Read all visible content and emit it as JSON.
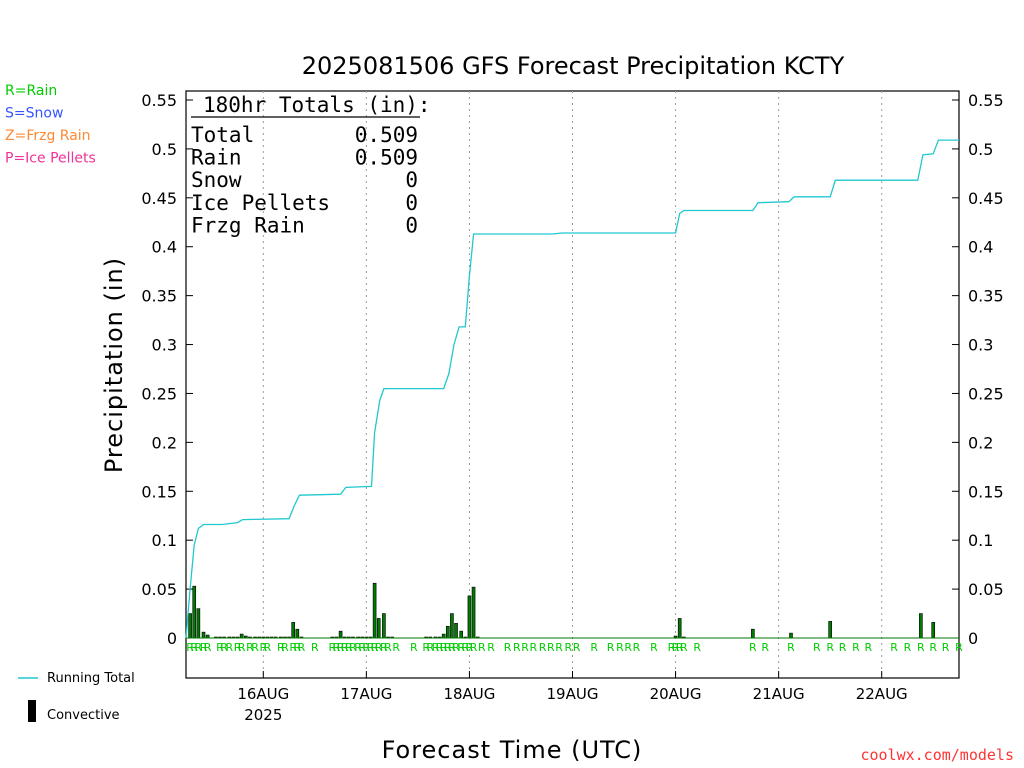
{
  "chart_data": {
    "type": "bar+line",
    "title": "2025081506 GFS Forecast Precipitation KCTY",
    "ylabel": "Precipitation (in)",
    "xlabel": "Forecast Time (UTC)",
    "ylim": [
      0,
      0.56
    ],
    "yticks": [
      "0",
      "0.05",
      "0.1",
      "0.15",
      "0.2",
      "0.25",
      "0.3",
      "0.35",
      "0.4",
      "0.45",
      "0.5",
      "0.55"
    ],
    "x_start_day": 15.25,
    "x_end_day": 22.75,
    "xticks": [
      {
        "label": "16AUG",
        "sub": "2025",
        "day": 16
      },
      {
        "label": "17AUG",
        "sub": "",
        "day": 17
      },
      {
        "label": "18AUG",
        "sub": "",
        "day": 18
      },
      {
        "label": "19AUG",
        "sub": "",
        "day": 19
      },
      {
        "label": "20AUG",
        "sub": "",
        "day": 20
      },
      {
        "label": "21AUG",
        "sub": "",
        "day": 21
      },
      {
        "label": "22AUG",
        "sub": "",
        "day": 22
      }
    ],
    "running_total": [
      [
        15.25,
        0.0
      ],
      [
        15.29,
        0.05
      ],
      [
        15.33,
        0.095
      ],
      [
        15.37,
        0.112
      ],
      [
        15.42,
        0.116
      ],
      [
        15.5,
        0.116
      ],
      [
        15.6,
        0.116
      ],
      [
        15.75,
        0.118
      ],
      [
        15.8,
        0.121
      ],
      [
        16.25,
        0.122
      ],
      [
        16.3,
        0.135
      ],
      [
        16.35,
        0.146
      ],
      [
        16.75,
        0.147
      ],
      [
        16.8,
        0.154
      ],
      [
        17.05,
        0.155
      ],
      [
        17.08,
        0.21
      ],
      [
        17.13,
        0.243
      ],
      [
        17.17,
        0.255
      ],
      [
        17.75,
        0.255
      ],
      [
        17.8,
        0.27
      ],
      [
        17.85,
        0.3
      ],
      [
        17.9,
        0.318
      ],
      [
        17.96,
        0.318
      ],
      [
        18.0,
        0.37
      ],
      [
        18.04,
        0.413
      ],
      [
        18.8,
        0.413
      ],
      [
        18.9,
        0.414
      ],
      [
        20.0,
        0.414
      ],
      [
        20.04,
        0.434
      ],
      [
        20.08,
        0.437
      ],
      [
        20.75,
        0.437
      ],
      [
        20.8,
        0.445
      ],
      [
        21.1,
        0.446
      ],
      [
        21.15,
        0.451
      ],
      [
        21.5,
        0.451
      ],
      [
        21.55,
        0.468
      ],
      [
        22.35,
        0.468
      ],
      [
        22.4,
        0.494
      ],
      [
        22.5,
        0.495
      ],
      [
        22.55,
        0.509
      ],
      [
        22.75,
        0.509
      ]
    ],
    "bars": [
      [
        15.29,
        0.025
      ],
      [
        15.33,
        0.053
      ],
      [
        15.37,
        0.03
      ],
      [
        15.42,
        0.006
      ],
      [
        15.46,
        0.003
      ],
      [
        15.54,
        0.001
      ],
      [
        15.58,
        0.001
      ],
      [
        15.62,
        0.001
      ],
      [
        15.67,
        0.001
      ],
      [
        15.71,
        0.001
      ],
      [
        15.75,
        0.001
      ],
      [
        15.79,
        0.004
      ],
      [
        15.83,
        0.002
      ],
      [
        15.87,
        0.001
      ],
      [
        15.92,
        0.001
      ],
      [
        15.96,
        0.001
      ],
      [
        16.0,
        0.001
      ],
      [
        16.04,
        0.001
      ],
      [
        16.08,
        0.001
      ],
      [
        16.12,
        0.001
      ],
      [
        16.17,
        0.001
      ],
      [
        16.21,
        0.001
      ],
      [
        16.25,
        0.001
      ],
      [
        16.29,
        0.016
      ],
      [
        16.33,
        0.009
      ],
      [
        16.37,
        0.001
      ],
      [
        16.67,
        0.001
      ],
      [
        16.71,
        0.001
      ],
      [
        16.75,
        0.007
      ],
      [
        16.79,
        0.001
      ],
      [
        16.83,
        0.001
      ],
      [
        16.87,
        0.001
      ],
      [
        16.92,
        0.001
      ],
      [
        16.96,
        0.001
      ],
      [
        17.0,
        0.001
      ],
      [
        17.04,
        0.001
      ],
      [
        17.08,
        0.056
      ],
      [
        17.12,
        0.02
      ],
      [
        17.17,
        0.025
      ],
      [
        17.21,
        0.001
      ],
      [
        17.25,
        0.001
      ],
      [
        17.58,
        0.001
      ],
      [
        17.62,
        0.001
      ],
      [
        17.67,
        0.001
      ],
      [
        17.71,
        0.001
      ],
      [
        17.75,
        0.004
      ],
      [
        17.79,
        0.012
      ],
      [
        17.83,
        0.025
      ],
      [
        17.87,
        0.015
      ],
      [
        17.92,
        0.007
      ],
      [
        17.96,
        0.001
      ],
      [
        18.0,
        0.043
      ],
      [
        18.04,
        0.052
      ],
      [
        18.08,
        0.001
      ],
      [
        20.0,
        0.002
      ],
      [
        20.04,
        0.02
      ],
      [
        20.08,
        0.001
      ],
      [
        20.75,
        0.009
      ],
      [
        21.12,
        0.005
      ],
      [
        21.5,
        0.017
      ],
      [
        22.38,
        0.025
      ],
      [
        22.5,
        0.016
      ]
    ],
    "ptype_marks": [
      [
        15.29,
        "R"
      ],
      [
        15.33,
        "R"
      ],
      [
        15.37,
        "R"
      ],
      [
        15.42,
        "R"
      ],
      [
        15.46,
        "R"
      ],
      [
        15.58,
        "R"
      ],
      [
        15.62,
        "R"
      ],
      [
        15.67,
        "R"
      ],
      [
        15.75,
        "R"
      ],
      [
        15.79,
        "R"
      ],
      [
        15.87,
        "R"
      ],
      [
        15.92,
        "R"
      ],
      [
        16.0,
        "R"
      ],
      [
        16.04,
        "R"
      ],
      [
        16.17,
        "R"
      ],
      [
        16.21,
        "R"
      ],
      [
        16.29,
        "R"
      ],
      [
        16.33,
        "R"
      ],
      [
        16.37,
        "R"
      ],
      [
        16.5,
        "R"
      ],
      [
        16.67,
        "R"
      ],
      [
        16.71,
        "R"
      ],
      [
        16.75,
        "R"
      ],
      [
        16.79,
        "R"
      ],
      [
        16.83,
        "R"
      ],
      [
        16.87,
        "R"
      ],
      [
        16.92,
        "R"
      ],
      [
        16.96,
        "R"
      ],
      [
        17.0,
        "R"
      ],
      [
        17.04,
        "R"
      ],
      [
        17.08,
        "R"
      ],
      [
        17.12,
        "R"
      ],
      [
        17.17,
        "R"
      ],
      [
        17.21,
        "R"
      ],
      [
        17.29,
        "R"
      ],
      [
        17.46,
        "R"
      ],
      [
        17.58,
        "R"
      ],
      [
        17.62,
        "R"
      ],
      [
        17.67,
        "R"
      ],
      [
        17.71,
        "R"
      ],
      [
        17.75,
        "R"
      ],
      [
        17.79,
        "R"
      ],
      [
        17.83,
        "R"
      ],
      [
        17.87,
        "R"
      ],
      [
        17.92,
        "R"
      ],
      [
        17.96,
        "R"
      ],
      [
        18.0,
        "R"
      ],
      [
        18.04,
        "R"
      ],
      [
        18.12,
        "R"
      ],
      [
        18.21,
        "R"
      ],
      [
        18.37,
        "R"
      ],
      [
        18.46,
        "R"
      ],
      [
        18.54,
        "R"
      ],
      [
        18.62,
        "R"
      ],
      [
        18.71,
        "R"
      ],
      [
        18.79,
        "R"
      ],
      [
        18.87,
        "R"
      ],
      [
        18.96,
        "R"
      ],
      [
        19.04,
        "R"
      ],
      [
        19.21,
        "R"
      ],
      [
        19.37,
        "R"
      ],
      [
        19.46,
        "R"
      ],
      [
        19.54,
        "R"
      ],
      [
        19.62,
        "R"
      ],
      [
        19.79,
        "R"
      ],
      [
        19.96,
        "R"
      ],
      [
        20.0,
        "R"
      ],
      [
        20.04,
        "R"
      ],
      [
        20.08,
        "R"
      ],
      [
        20.21,
        "R"
      ],
      [
        20.75,
        "R"
      ],
      [
        20.87,
        "R"
      ],
      [
        21.12,
        "R"
      ],
      [
        21.37,
        "R"
      ],
      [
        21.5,
        "R"
      ],
      [
        21.62,
        "R"
      ],
      [
        21.75,
        "R"
      ],
      [
        21.87,
        "R"
      ],
      [
        22.12,
        "R"
      ],
      [
        22.25,
        "R"
      ],
      [
        22.38,
        "R"
      ],
      [
        22.5,
        "R"
      ],
      [
        22.62,
        "R"
      ],
      [
        22.75,
        "R"
      ]
    ],
    "colors": {
      "line": "#20c8d0",
      "bar_fill": "#007a00",
      "bar_edge": "#000000",
      "ptype": "#00cc00"
    }
  },
  "totals": {
    "heading": "180hr Totals (in):",
    "rows": [
      {
        "label": "Total",
        "value": "0.509"
      },
      {
        "label": "Rain",
        "value": "0.509"
      },
      {
        "label": "Snow",
        "value": "0"
      },
      {
        "label": "Ice Pellets",
        "value": "0"
      },
      {
        "label": "Frzg Rain",
        "value": "0"
      }
    ]
  },
  "ptype_legend": [
    {
      "text": "R=Rain",
      "color": "#00cc00"
    },
    {
      "text": "S=Snow",
      "color": "#3355ff"
    },
    {
      "text": "Z=Frzg Rain",
      "color": "#ff8833"
    },
    {
      "text": "P=Ice Pellets",
      "color": "#ee3399"
    }
  ],
  "series_legend": {
    "running_total": "Running Total",
    "convective": "Convective"
  },
  "credit": "coolwx.com/models"
}
